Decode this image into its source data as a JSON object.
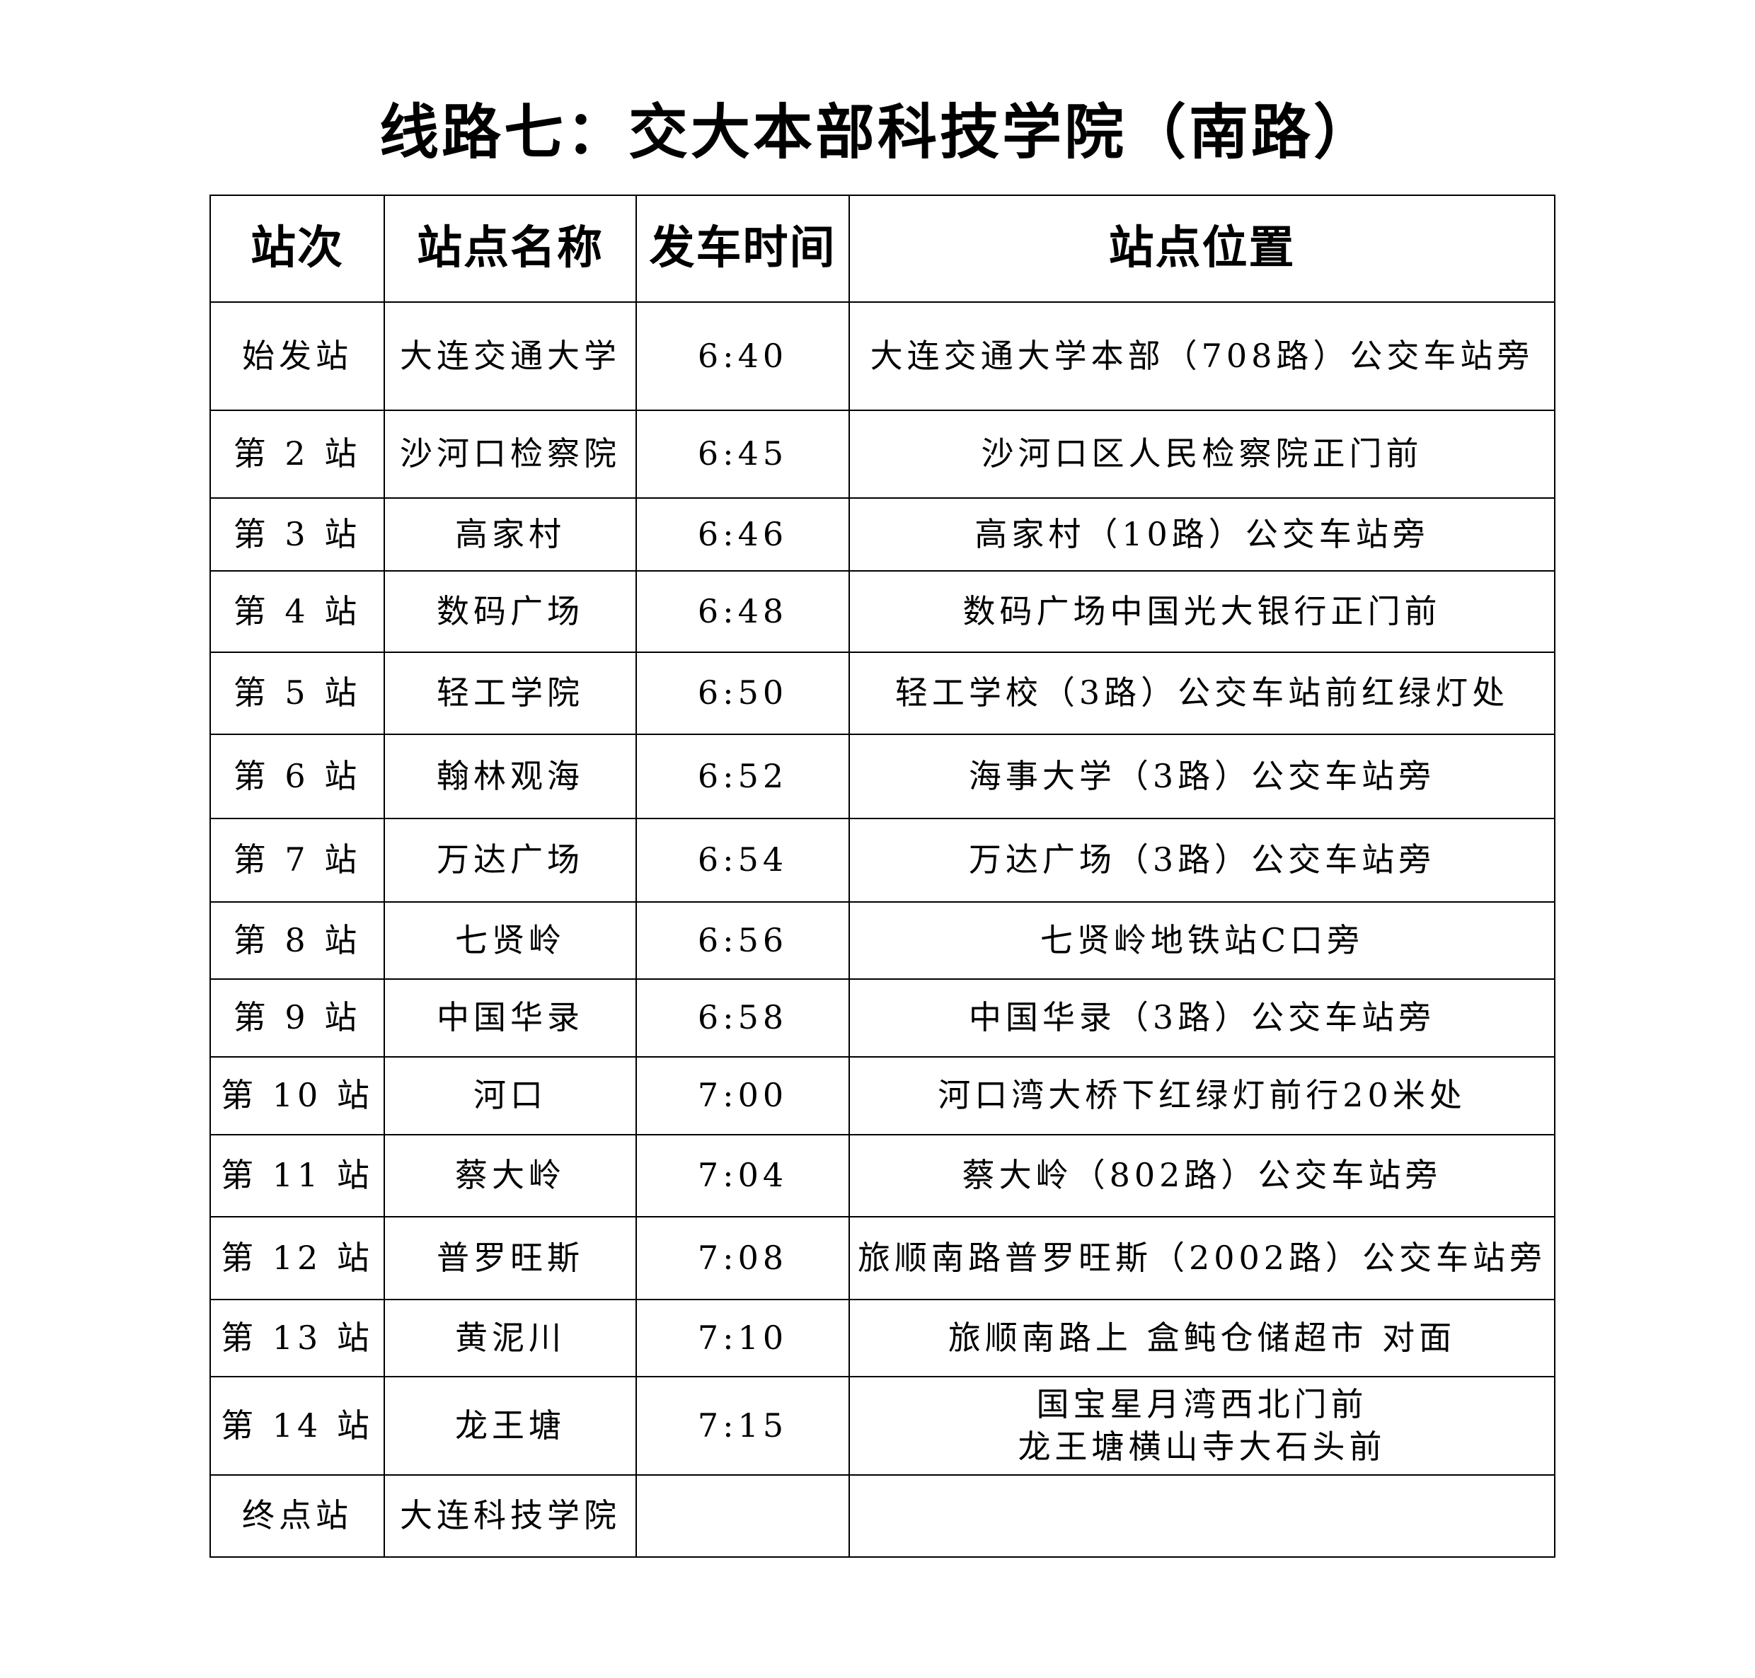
{
  "title": "线路七：交大本部科技学院（南路）",
  "headers": [
    "站次",
    "站点名称",
    "发车时间",
    "站点位置"
  ],
  "rows": [
    {
      "order": "始发站",
      "name": "大连交通大学",
      "time": "6:40",
      "location": [
        "大连交通大学本部（708路）公交车站旁"
      ]
    },
    {
      "order": "第 2 站",
      "name": "沙河口检察院",
      "time": "6:45",
      "location": [
        "沙河口区人民检察院正门前"
      ]
    },
    {
      "order": "第 3 站",
      "name": "高家村",
      "time": "6:46",
      "location": [
        "高家村（10路）公交车站旁"
      ]
    },
    {
      "order": "第 4 站",
      "name": "数码广场",
      "time": "6:48",
      "location": [
        "数码广场中国光大银行正门前"
      ]
    },
    {
      "order": "第 5 站",
      "name": "轻工学院",
      "time": "6:50",
      "location": [
        "轻工学校（3路）公交车站前红绿灯处"
      ]
    },
    {
      "order": "第 6 站",
      "name": "翰林观海",
      "time": "6:52",
      "location": [
        "海事大学（3路）公交车站旁"
      ]
    },
    {
      "order": "第 7 站",
      "name": "万达广场",
      "time": "6:54",
      "location": [
        "万达广场（3路）公交车站旁"
      ]
    },
    {
      "order": "第 8 站",
      "name": "七贤岭",
      "time": "6:56",
      "location": [
        "七贤岭地铁站C口旁"
      ]
    },
    {
      "order": "第 9 站",
      "name": "中国华录",
      "time": "6:58",
      "location": [
        "中国华录（3路）公交车站旁"
      ]
    },
    {
      "order": "第 10 站",
      "name": "河口",
      "time": "7:00",
      "location": [
        "河口湾大桥下红绿灯前行20米处"
      ]
    },
    {
      "order": "第 11 站",
      "name": "蔡大岭",
      "time": "7:04",
      "location": [
        "蔡大岭（802路）公交车站旁"
      ]
    },
    {
      "order": "第 12 站",
      "name": "普罗旺斯",
      "time": "7:08",
      "location": [
        "旅顺南路普罗旺斯（2002路）公交车站旁"
      ]
    },
    {
      "order": "第 13 站",
      "name": "黄泥川",
      "time": "7:10",
      "location": [
        "旅顺南路上 盒鲀仓储超市 对面"
      ]
    },
    {
      "order": "第 14 站",
      "name": "龙王塘",
      "time": "7:15",
      "location": [
        "国宝星月湾西北门前",
        "龙王塘横山寺大石头前"
      ]
    },
    {
      "order": "终点站",
      "name": "大连科技学院",
      "time": "",
      "location": [
        ""
      ]
    }
  ]
}
